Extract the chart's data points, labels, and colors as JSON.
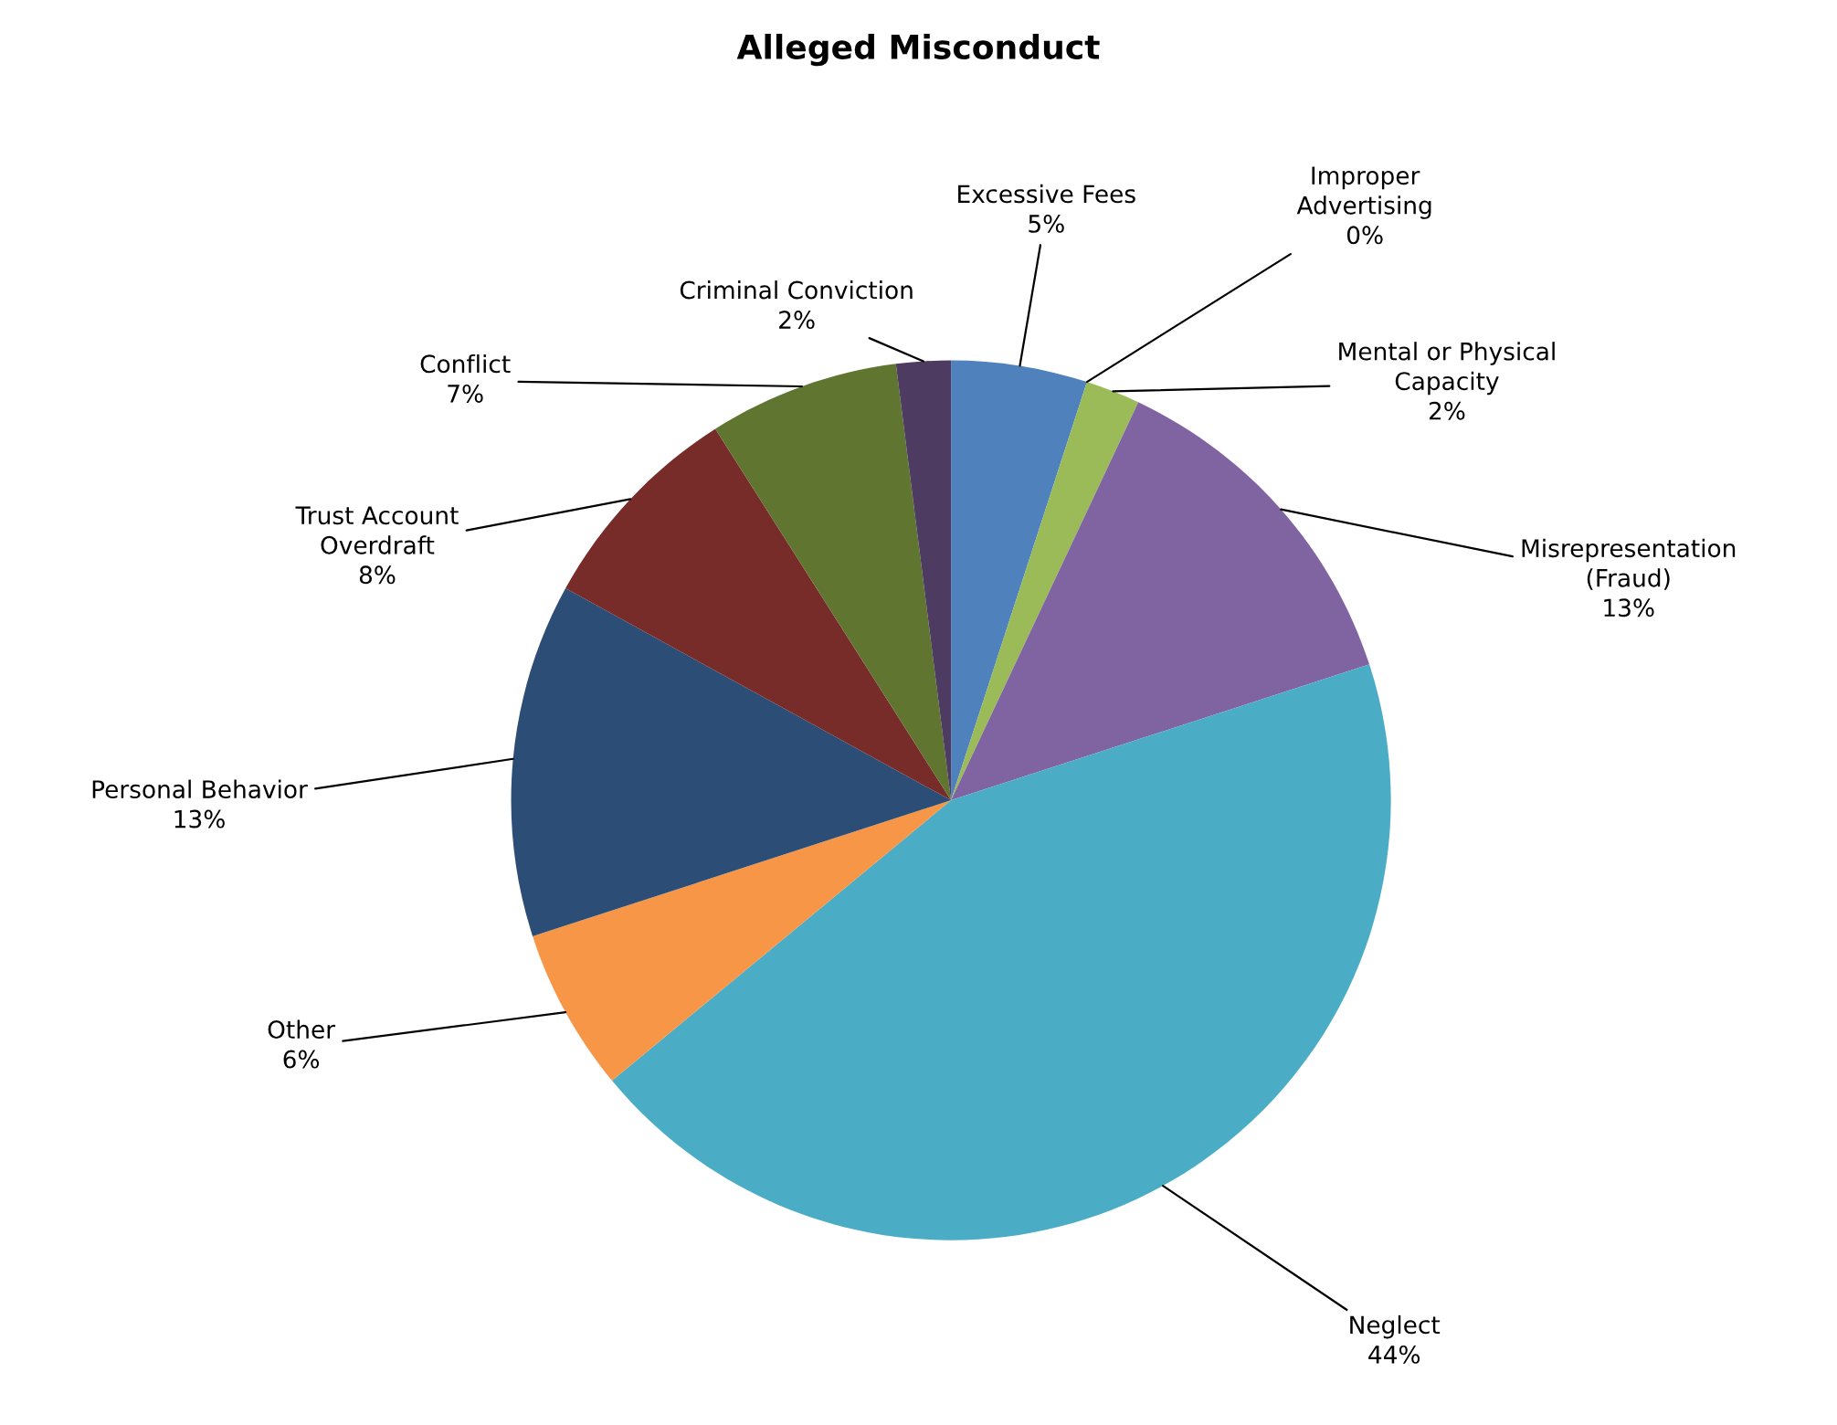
{
  "chart_data": {
    "type": "pie",
    "title": "Alleged Misconduct",
    "categories": [
      "Excessive Fees",
      "Improper\nAdvertising",
      "Mental or Physical\nCapacity",
      "Misrepresentation\n(Fraud)",
      "Neglect",
      "Other",
      "Personal Behavior",
      "Trust Account\nOverdraft",
      "Conflict",
      "Criminal Conviction"
    ],
    "values": [
      5,
      0,
      2,
      13,
      44,
      6,
      13,
      8,
      7,
      2
    ],
    "colors": [
      "#4f81bd",
      "#c0504d",
      "#9bbb59",
      "#8064a2",
      "#4bacc6",
      "#f79646",
      "#2c4d75",
      "#772c2a",
      "#5f7530",
      "#4d3b62"
    ],
    "value_labels": [
      "5%",
      "0%",
      "2%",
      "13%",
      "44%",
      "6%",
      "13%",
      "8%",
      "7%",
      "2%"
    ]
  }
}
